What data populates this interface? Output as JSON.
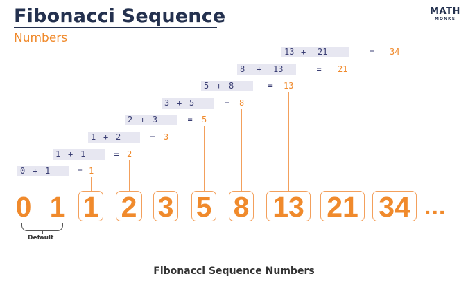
{
  "header": {
    "title": "Fibonacci Sequence",
    "subtitle": "Numbers"
  },
  "logo": {
    "top": "MATH",
    "bottom": "MONKS"
  },
  "equations": [
    {
      "a": "0",
      "op": "+",
      "b": "1",
      "eq": "=",
      "result": "1"
    },
    {
      "a": "1",
      "op": "+",
      "b": "1",
      "eq": "=",
      "result": "2"
    },
    {
      "a": "1",
      "op": "+",
      "b": "2",
      "eq": "=",
      "result": "3"
    },
    {
      "a": "2",
      "op": "+",
      "b": "3",
      "eq": "=",
      "result": "5"
    },
    {
      "a": "3",
      "op": "+",
      "b": "5",
      "eq": "=",
      "result": "8"
    },
    {
      "a": "5",
      "op": "+",
      "b": "8",
      "eq": "=",
      "result": "13"
    },
    {
      "a": "8",
      "op": "+",
      "b": "13",
      "eq": "=",
      "result": "21"
    },
    {
      "a": "13",
      "op": "+",
      "b": "21",
      "eq": "=",
      "result": "34"
    }
  ],
  "sequence": [
    "0",
    "1",
    "1",
    "2",
    "3",
    "5",
    "8",
    "13",
    "21",
    "34"
  ],
  "ellipsis": "...",
  "default_label": "Default",
  "caption": "Fibonacci Sequence Numbers",
  "colors": {
    "navy": "#24314f",
    "orange": "#f08a2c",
    "highlight": "#e7e7f1"
  }
}
